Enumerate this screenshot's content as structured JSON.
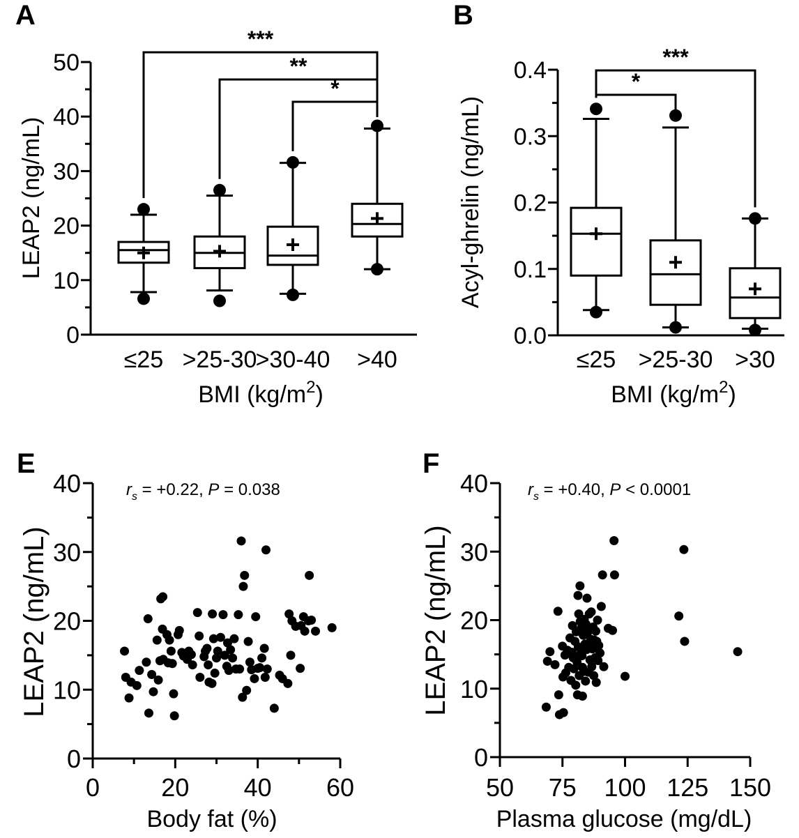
{
  "chart_data": [
    {
      "panel": "A",
      "type": "box",
      "xlabel": "BMI (kg/m",
      "xlabel_sup": "2",
      "xlabel_close": ")",
      "ylabel": "LEAP2 (ng/mL)",
      "ylim": [
        0,
        50
      ],
      "yticks": [
        "0",
        "10",
        "20",
        "30",
        "40",
        "50"
      ],
      "categories": [
        "≤25",
        ">25-30",
        ">30-40",
        ">40"
      ],
      "boxes": [
        {
          "q1": 13.2,
          "median": 15.5,
          "q3": 17.0,
          "mean": 15.0,
          "whisker_low": 7.8,
          "whisker_high": 22.0,
          "outliers": [
            6.6,
            23.0
          ]
        },
        {
          "q1": 12.2,
          "median": 15.0,
          "q3": 18.0,
          "mean": 15.3,
          "whisker_low": 8.1,
          "whisker_high": 25.5,
          "outliers": [
            6.2,
            26.5
          ]
        },
        {
          "q1": 12.8,
          "median": 14.5,
          "q3": 19.8,
          "mean": 16.5,
          "whisker_low": 7.5,
          "whisker_high": 31.5,
          "outliers": [
            7.3,
            31.6
          ]
        },
        {
          "q1": 18.0,
          "median": 20.3,
          "q3": 24.0,
          "mean": 21.3,
          "whisker_low": 12.0,
          "whisker_high": 37.8,
          "outliers": [
            12.0,
            38.3
          ]
        }
      ],
      "significance": [
        {
          "from": 0,
          "to": 3,
          "label": "***"
        },
        {
          "from": 1,
          "to": 3,
          "label": "**"
        },
        {
          "from": 2,
          "to": 3,
          "label": "*"
        }
      ]
    },
    {
      "panel": "B",
      "type": "box",
      "xlabel": "BMI (kg/m",
      "xlabel_sup": "2",
      "xlabel_close": ")",
      "ylabel": "Acyl-ghrelin (ng/mL)",
      "ylim": [
        0,
        0.4
      ],
      "yticks": [
        "0.0",
        "0.1",
        "0.2",
        "0.3",
        "0.4"
      ],
      "categories": [
        "≤25",
        ">25-30",
        ">30"
      ],
      "boxes": [
        {
          "q1": 0.09,
          "median": 0.153,
          "q3": 0.192,
          "mean": 0.153,
          "whisker_low": 0.038,
          "whisker_high": 0.326,
          "outliers": [
            0.035,
            0.341
          ]
        },
        {
          "q1": 0.046,
          "median": 0.092,
          "q3": 0.143,
          "mean": 0.11,
          "whisker_low": 0.012,
          "whisker_high": 0.313,
          "outliers": [
            0.012,
            0.331
          ]
        },
        {
          "q1": 0.026,
          "median": 0.057,
          "q3": 0.101,
          "mean": 0.07,
          "whisker_low": 0.01,
          "whisker_high": 0.176,
          "outliers": [
            0.008,
            0.176
          ]
        }
      ],
      "significance": [
        {
          "from": 0,
          "to": 2,
          "label": "***"
        },
        {
          "from": 0,
          "to": 1,
          "label": "*"
        }
      ]
    },
    {
      "panel": "E",
      "type": "scatter",
      "xlabel": "Body fat (%)",
      "ylabel": "LEAP2 (ng/mL)",
      "xlim": [
        0,
        60
      ],
      "ylim": [
        0,
        40
      ],
      "xticks": [
        "0",
        "20",
        "40",
        "60"
      ],
      "yticks": [
        "0",
        "10",
        "20",
        "30",
        "40"
      ],
      "stat_r": "r",
      "stat_sub": "s",
      "stat_rest": " = +0.22, ",
      "stat_p": "P",
      "stat_end": " = 0.038",
      "points": [
        [
          7.7,
          15.6
        ],
        [
          8,
          11.8
        ],
        [
          8.8,
          8.8
        ],
        [
          9.3,
          11.1
        ],
        [
          10.7,
          10.6
        ],
        [
          11.3,
          12.8
        ],
        [
          13,
          14
        ],
        [
          13.4,
          20.3
        ],
        [
          13.6,
          6.6
        ],
        [
          14.3,
          12.2
        ],
        [
          14.7,
          9.7
        ],
        [
          15.6,
          17.2
        ],
        [
          15.9,
          11.4
        ],
        [
          16.3,
          14.2
        ],
        [
          16.5,
          23.2
        ],
        [
          16.9,
          18.8
        ],
        [
          17,
          23.5
        ],
        [
          17.1,
          14.4
        ],
        [
          18,
          18
        ],
        [
          18.3,
          13.9
        ],
        [
          18.6,
          17.2
        ],
        [
          19,
          15.6
        ],
        [
          19.3,
          13.8
        ],
        [
          19.6,
          9.4
        ],
        [
          19.8,
          6.2
        ],
        [
          20.7,
          18
        ],
        [
          21,
          18.6
        ],
        [
          21.6,
          15.4
        ],
        [
          22,
          14.9
        ],
        [
          22.9,
          14.4
        ],
        [
          23.3,
          15.6
        ],
        [
          23.9,
          15.1
        ],
        [
          24.2,
          13.6
        ],
        [
          25.4,
          21.2
        ],
        [
          25.8,
          17.8
        ],
        [
          26,
          11.8
        ],
        [
          27,
          14.8
        ],
        [
          27.3,
          15.6
        ],
        [
          27.7,
          16
        ],
        [
          28,
          13.6
        ],
        [
          28.2,
          11.1
        ],
        [
          28.9,
          10.9
        ],
        [
          29,
          21
        ],
        [
          29.3,
          17.4
        ],
        [
          29.6,
          12.4
        ],
        [
          30,
          14.6
        ],
        [
          30.3,
          15.6
        ],
        [
          31,
          17.6
        ],
        [
          31.6,
          20.9
        ],
        [
          32,
          15
        ],
        [
          32.5,
          13.4
        ],
        [
          32.7,
          16.8
        ],
        [
          33,
          12.8
        ],
        [
          33.4,
          15.8
        ],
        [
          33.9,
          14.6
        ],
        [
          34.3,
          17.4
        ],
        [
          34.7,
          13
        ],
        [
          35.3,
          20.9
        ],
        [
          35.6,
          13
        ],
        [
          36,
          31.6
        ],
        [
          36.3,
          8.9
        ],
        [
          36.5,
          25
        ],
        [
          36.8,
          26.6
        ],
        [
          37.3,
          9.9
        ],
        [
          37.7,
          17
        ],
        [
          38.1,
          14
        ],
        [
          38.5,
          12.9
        ],
        [
          39.2,
          11.6
        ],
        [
          39.5,
          20.6
        ],
        [
          40,
          13.1
        ],
        [
          40.5,
          13.2
        ],
        [
          41,
          14.6
        ],
        [
          41.6,
          16
        ],
        [
          41.8,
          11.8
        ],
        [
          42,
          30.3
        ],
        [
          42.3,
          13
        ],
        [
          44,
          7.3
        ],
        [
          45.3,
          12.1
        ],
        [
          46,
          11.6
        ],
        [
          47.3,
          10.9
        ],
        [
          47.6,
          21
        ],
        [
          48,
          15
        ],
        [
          48.3,
          20
        ],
        [
          49.2,
          19.2
        ],
        [
          50.3,
          13.1
        ],
        [
          50.5,
          19.3
        ],
        [
          51.1,
          20.6
        ],
        [
          51.4,
          18.5
        ],
        [
          52.3,
          20
        ],
        [
          52.5,
          26.6
        ],
        [
          53,
          20.1
        ],
        [
          54,
          18.5
        ],
        [
          58,
          19
        ]
      ]
    },
    {
      "panel": "F",
      "type": "scatter",
      "xlabel": "Plasma glucose (mg/dL)",
      "ylabel": "LEAP2 (ng/mL)",
      "xlim": [
        50,
        150
      ],
      "ylim": [
        0,
        40
      ],
      "xticks": [
        "50",
        "75",
        "100",
        "125",
        "150"
      ],
      "yticks": [
        "0",
        "10",
        "20",
        "30",
        "40"
      ],
      "stat_r": "r",
      "stat_sub": "s",
      "stat_rest": " = +0.40, ",
      "stat_p": "P",
      "stat_end": " < 0.0001",
      "points": [
        [
          68.5,
          7.3
        ],
        [
          69,
          14
        ],
        [
          70,
          15.4
        ],
        [
          72,
          13.5
        ],
        [
          73.2,
          21.3
        ],
        [
          73.5,
          9.1
        ],
        [
          73.8,
          6.2
        ],
        [
          75,
          16.2
        ],
        [
          75.2,
          11.7
        ],
        [
          75.4,
          6.5
        ],
        [
          76,
          14.9
        ],
        [
          76.3,
          12.3
        ],
        [
          77,
          15.6
        ],
        [
          77.5,
          13.1
        ],
        [
          78,
          17.4
        ],
        [
          78.4,
          11.2
        ],
        [
          78.8,
          15.3
        ],
        [
          79,
          19.2
        ],
        [
          79.3,
          14.5
        ],
        [
          79.6,
          12.9
        ],
        [
          80,
          16.9
        ],
        [
          80.3,
          10.5
        ],
        [
          80.5,
          18.3
        ],
        [
          80.8,
          13.9
        ],
        [
          81,
          9.1
        ],
        [
          81.2,
          23.6
        ],
        [
          81.3,
          16.1
        ],
        [
          81.5,
          20.9
        ],
        [
          81.7,
          11.9
        ],
        [
          82,
          25
        ],
        [
          82.1,
          19.8
        ],
        [
          82.3,
          15.1
        ],
        [
          82.5,
          18.8
        ],
        [
          82.8,
          14.8
        ],
        [
          83,
          13.1
        ],
        [
          83,
          8.9
        ],
        [
          83.3,
          17.8
        ],
        [
          83.5,
          12.5
        ],
        [
          83.7,
          20.1
        ],
        [
          84,
          16.5
        ],
        [
          84.2,
          11.1
        ],
        [
          84.4,
          19.4
        ],
        [
          84.6,
          15.7
        ],
        [
          84.8,
          23.2
        ],
        [
          85,
          18.2
        ],
        [
          85.3,
          12.4
        ],
        [
          85.5,
          16.6
        ],
        [
          85.7,
          20.9
        ],
        [
          86,
          14.2
        ],
        [
          86.3,
          17.2
        ],
        [
          86.5,
          21.2
        ],
        [
          86.7,
          13.2
        ],
        [
          87,
          15.8
        ],
        [
          87.2,
          19
        ],
        [
          87.5,
          11.9
        ],
        [
          87.7,
          17.1
        ],
        [
          88,
          14.5
        ],
        [
          88.3,
          18.4
        ],
        [
          88.5,
          10.9
        ],
        [
          88.7,
          16.9
        ],
        [
          89,
          20
        ],
        [
          89.2,
          14.1
        ],
        [
          89.5,
          16.3
        ],
        [
          90,
          15.2
        ],
        [
          90.5,
          22
        ],
        [
          91,
          26.6
        ],
        [
          91.5,
          13.2
        ],
        [
          93.3,
          18.8
        ],
        [
          95,
          18.5
        ],
        [
          95.6,
          31.6
        ],
        [
          95.8,
          26.6
        ],
        [
          100,
          11.8
        ],
        [
          121.5,
          20.6
        ],
        [
          123.5,
          30.3
        ],
        [
          123.8,
          16.9
        ],
        [
          145,
          15.4
        ]
      ]
    }
  ]
}
